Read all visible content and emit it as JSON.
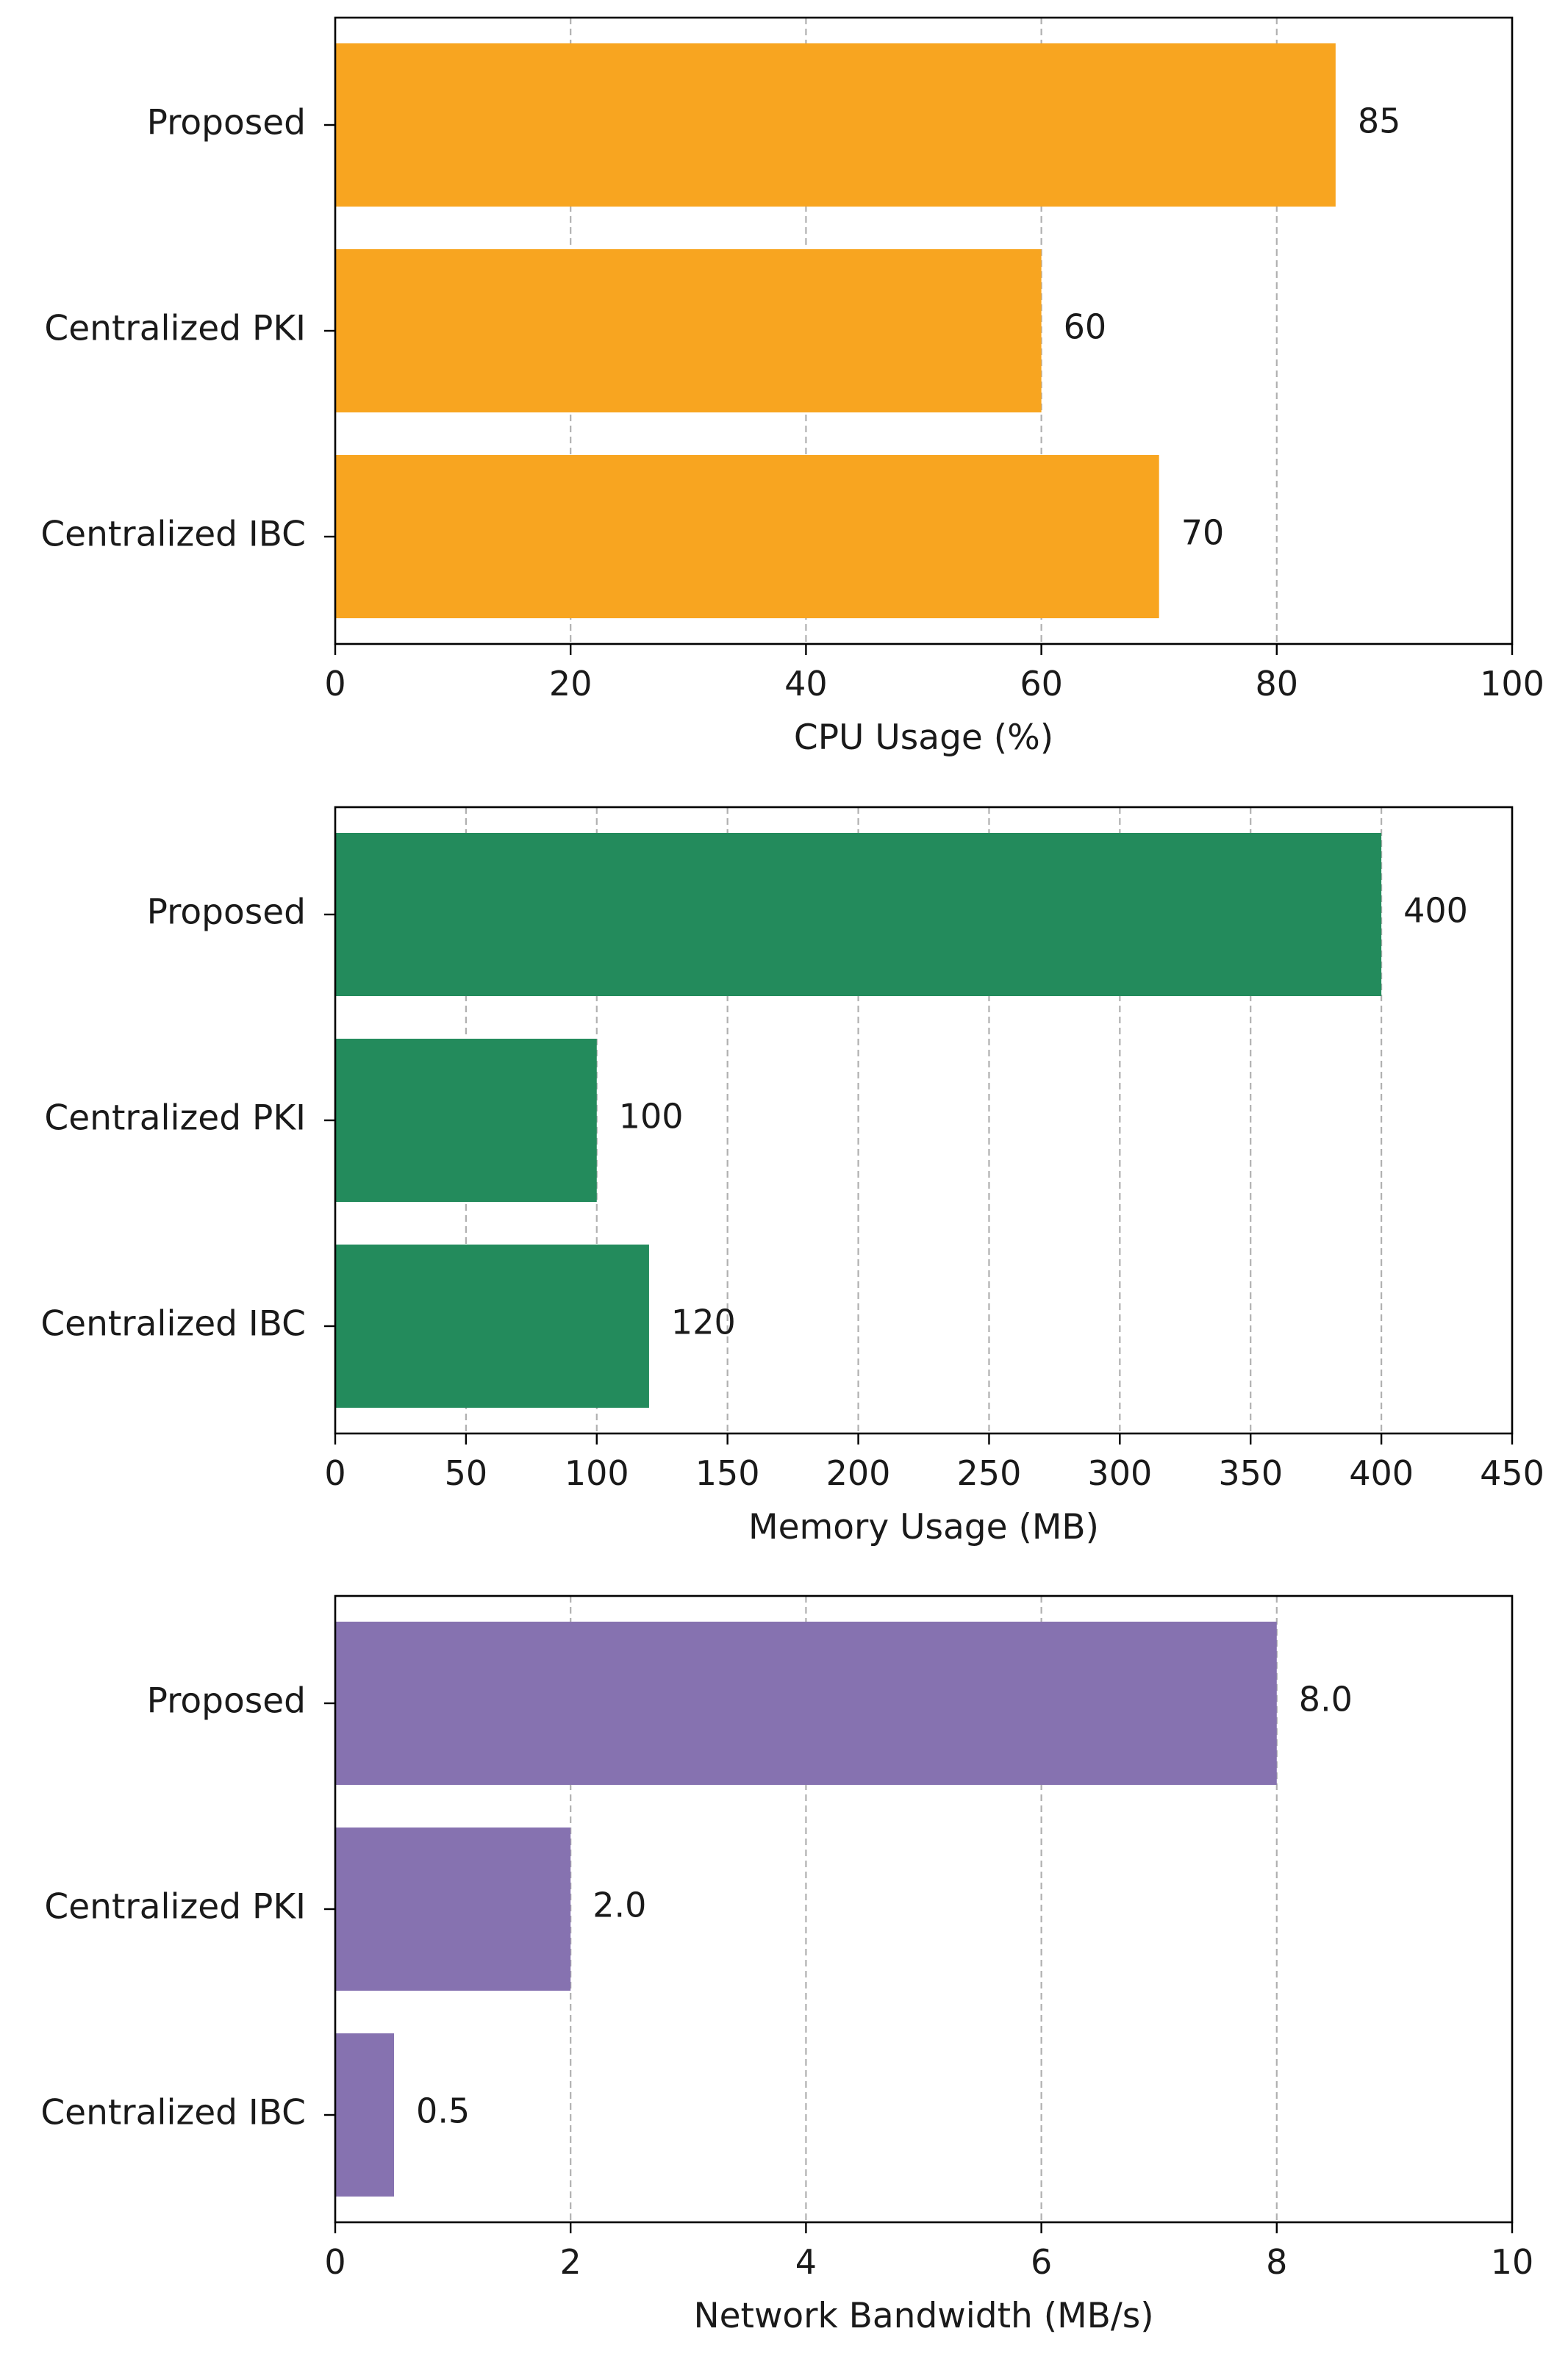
{
  "chart_data": [
    {
      "type": "bar",
      "orientation": "horizontal",
      "title": "",
      "xlabel": "CPU Usage (%)",
      "ylabel": "",
      "categories": [
        "Proposed",
        "Centralized PKI",
        "Centralized IBC"
      ],
      "values": [
        85,
        60,
        70
      ],
      "value_labels": [
        "85",
        "60",
        "70"
      ],
      "xlim": [
        0,
        100
      ],
      "xticks": [
        0,
        20,
        40,
        60,
        80,
        100
      ],
      "xtick_labels": [
        "0",
        "20",
        "40",
        "60",
        "80",
        "100"
      ],
      "grid": "vertical-dashed",
      "color": "#f8a520"
    },
    {
      "type": "bar",
      "orientation": "horizontal",
      "title": "",
      "xlabel": "Memory Usage (MB)",
      "ylabel": "",
      "categories": [
        "Proposed",
        "Centralized PKI",
        "Centralized IBC"
      ],
      "values": [
        400,
        100,
        120
      ],
      "value_labels": [
        "400",
        "100",
        "120"
      ],
      "xlim": [
        0,
        450
      ],
      "xticks": [
        0,
        50,
        100,
        150,
        200,
        250,
        300,
        350,
        400,
        450
      ],
      "xtick_labels": [
        "0",
        "50",
        "100",
        "150",
        "200",
        "250",
        "300",
        "350",
        "400",
        "450"
      ],
      "grid": "vertical-dashed",
      "color": "#238b5c"
    },
    {
      "type": "bar",
      "orientation": "horizontal",
      "title": "",
      "xlabel": "Network Bandwidth (MB/s)",
      "ylabel": "",
      "categories": [
        "Proposed",
        "Centralized PKI",
        "Centralized IBC"
      ],
      "values": [
        8.0,
        2.0,
        0.5
      ],
      "value_labels": [
        "8.0",
        "2.0",
        "0.5"
      ],
      "xlim": [
        0,
        10
      ],
      "xticks": [
        0,
        2,
        4,
        6,
        8,
        10
      ],
      "xtick_labels": [
        "0",
        "2",
        "4",
        "6",
        "8",
        "10"
      ],
      "grid": "vertical-dashed",
      "color": "#8672b0"
    }
  ]
}
